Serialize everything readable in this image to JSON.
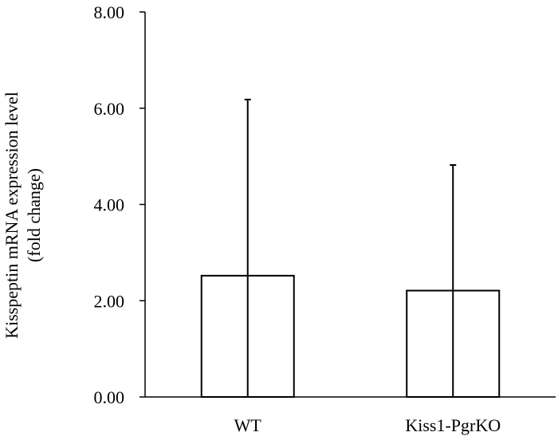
{
  "chart_data": {
    "type": "bar",
    "categories": [
      "WT",
      "Kiss1-PgrKO"
    ],
    "values": [
      2.52,
      2.21
    ],
    "error_upper": [
      6.18,
      4.82
    ],
    "ylabel_lines": [
      "Kisspeptin mRNA expression level",
      "(fold change)"
    ],
    "ylim": [
      0,
      8
    ],
    "yticks": [
      0,
      2,
      4,
      6,
      8
    ],
    "ytick_labels": [
      "0.00",
      "2.00",
      "4.00",
      "6.00",
      "8.00"
    ],
    "grid": false,
    "legend": "none",
    "colors": {
      "bar_fill": "#ffffff",
      "stroke": "#000000"
    }
  }
}
